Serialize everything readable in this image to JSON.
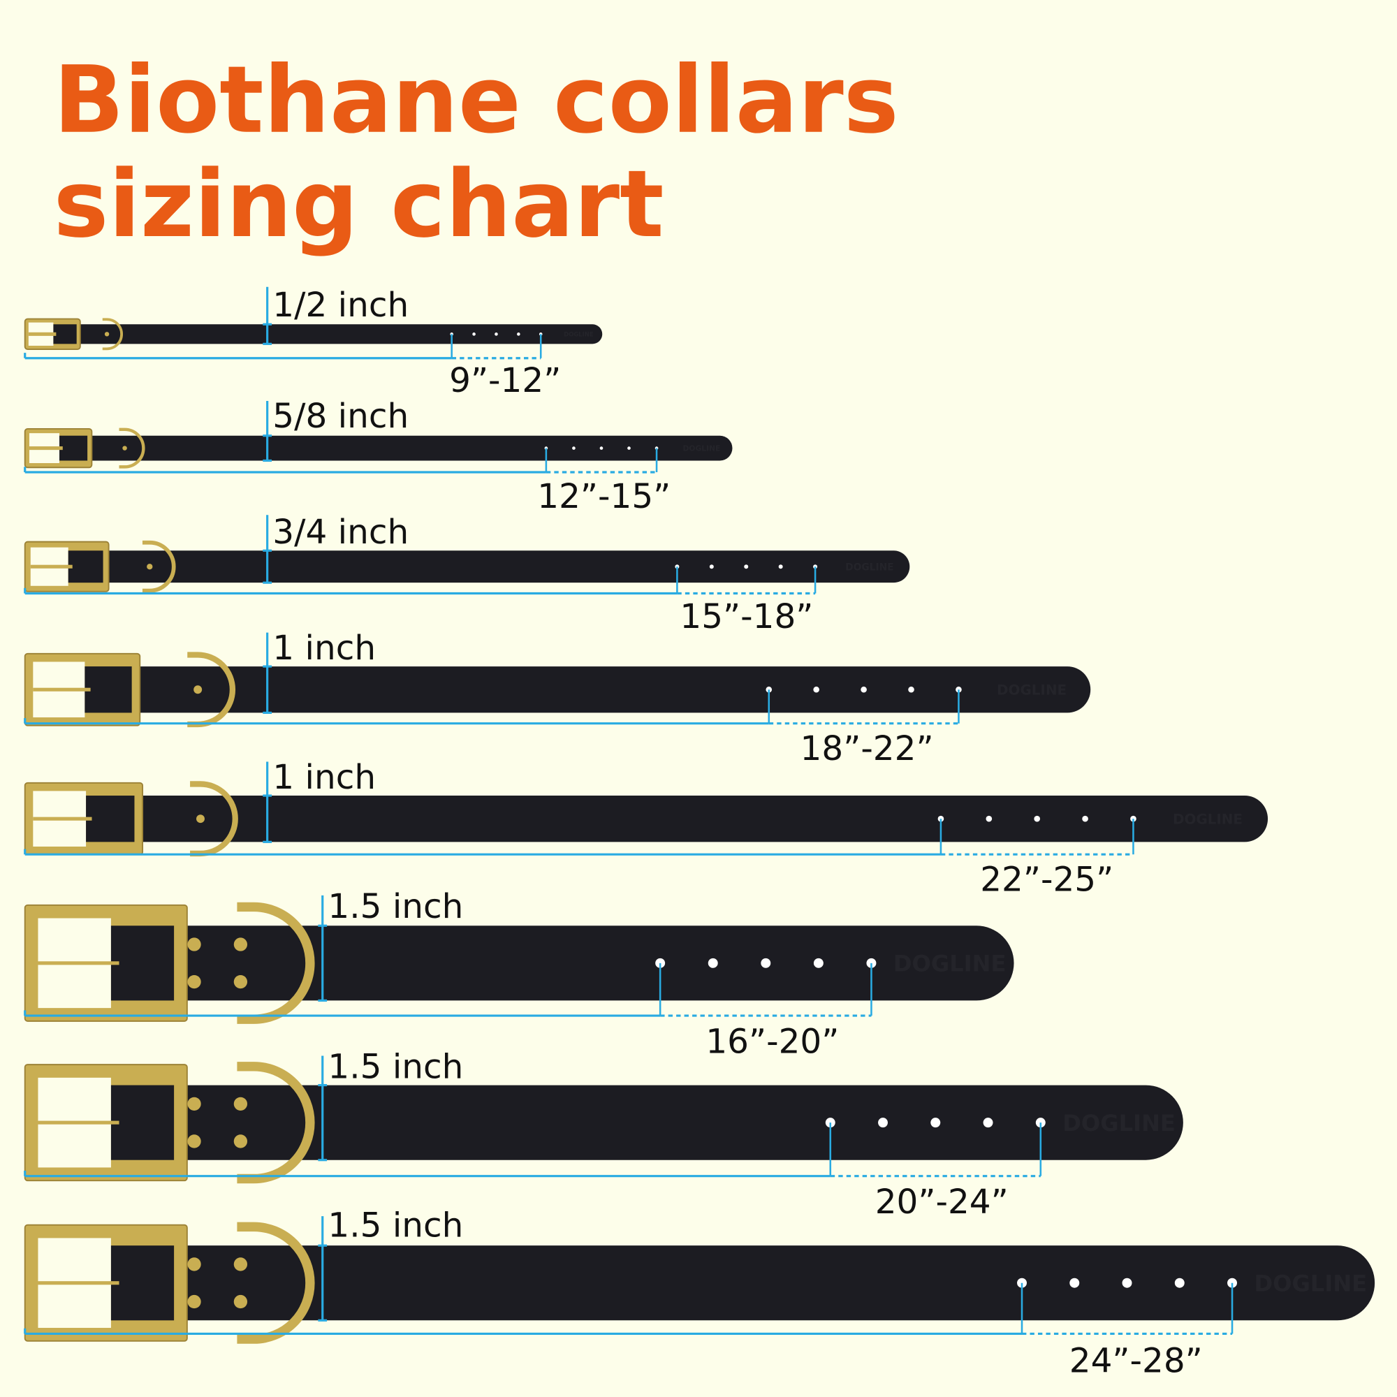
{
  "title": {
    "line1": "Biothane collars",
    "line2": "sizing chart"
  },
  "brand_embossed": "DOGLINE",
  "colors": {
    "title": "#E95B15",
    "background": "#FDFEEA",
    "measure_lines": "#29ABE2",
    "strap": "#1C1C22",
    "hardware": "#C9AE52"
  },
  "collars": [
    {
      "width_label": "1/2 inch",
      "size_label": "9”-12”"
    },
    {
      "width_label": "5/8 inch",
      "size_label": "12”-15”"
    },
    {
      "width_label": "3/4 inch",
      "size_label": "15”-18”"
    },
    {
      "width_label": "1 inch",
      "size_label": "18”-22”"
    },
    {
      "width_label": "1 inch",
      "size_label": "22”-25”"
    },
    {
      "width_label": "1.5 inch",
      "size_label": "16”-20”"
    },
    {
      "width_label": "1.5 inch",
      "size_label": "20”-24”"
    },
    {
      "width_label": "1.5 inch",
      "size_label": "24”-28”"
    }
  ]
}
